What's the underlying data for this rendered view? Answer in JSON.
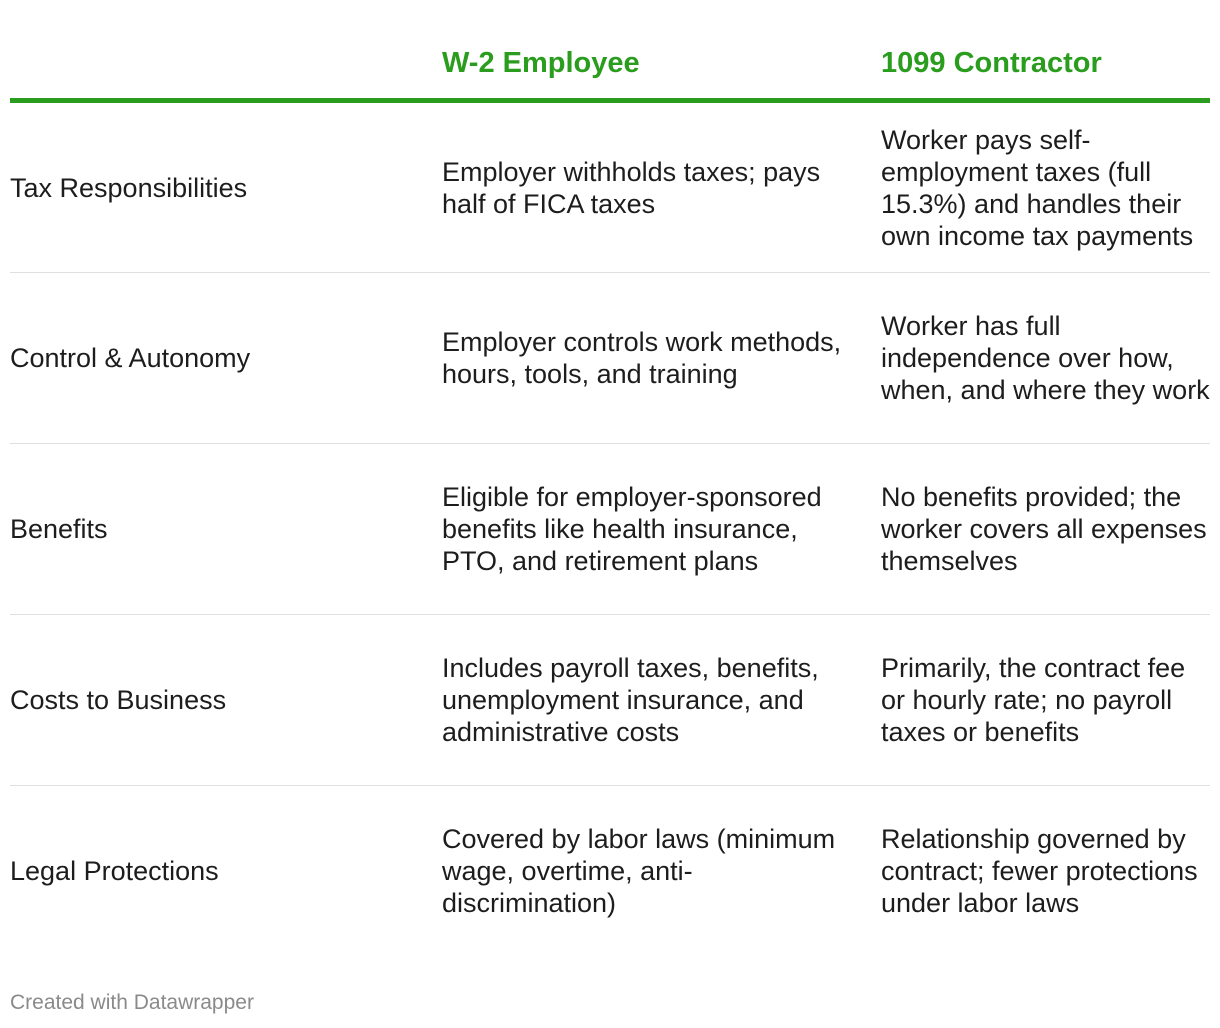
{
  "table": {
    "columns": [
      "",
      "W-2 Employee",
      "1099 Contractor"
    ],
    "accent_color": "#2a9d1e",
    "rule_color": "#2a9d1e",
    "rows": [
      {
        "label": "Tax Responsibilities",
        "w2": "Employer withholds taxes; pays half of FICA taxes",
        "contractor": "Worker pays self-employment taxes (full 15.3%) and handles their own income tax payments"
      },
      {
        "label": "Control & Autonomy",
        "w2": "Employer controls work methods, hours, tools, and training",
        "contractor": "Worker has full independence over how, when, and where they work"
      },
      {
        "label": "Benefits",
        "w2": "Eligible for employer-sponsored benefits like health insurance, PTO, and retirement plans",
        "contractor": "No benefits provided; the worker covers all expenses themselves"
      },
      {
        "label": "Costs to Business",
        "w2": "Includes payroll taxes, benefits, unemployment insurance, and administrative costs",
        "contractor": "Primarily, the contract fee or hourly rate; no payroll taxes or benefits"
      },
      {
        "label": "Legal Protections",
        "w2": "Covered by labor laws (minimum wage, overtime, anti-discrimination)",
        "contractor": "Relationship governed by contract; fewer protections under labor laws"
      }
    ]
  },
  "footer": {
    "credit": "Created with Datawrapper"
  }
}
